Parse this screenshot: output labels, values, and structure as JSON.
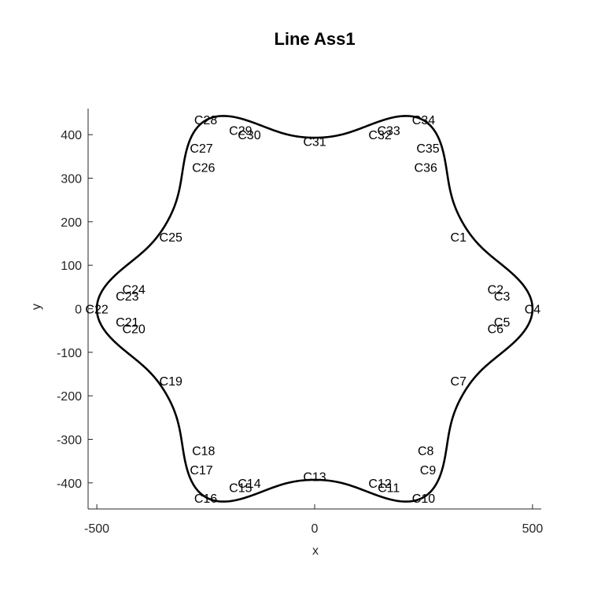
{
  "chart_data": {
    "type": "line",
    "title": "Line Ass1",
    "xlabel": "x",
    "ylabel": "y",
    "xlim": [
      -520,
      520
    ],
    "ylim": [
      -460,
      460
    ],
    "xticks": [
      -500,
      0,
      500
    ],
    "xtick_labels": [
      "-500",
      "0",
      "500"
    ],
    "yticks": [
      -400,
      -300,
      -200,
      -100,
      0,
      100,
      200,
      300,
      400
    ],
    "ytick_labels": [
      "-400",
      "-300",
      "-200",
      "-100",
      "0",
      "100",
      "200",
      "300",
      "400"
    ],
    "grid": false,
    "line_color": "#000000",
    "lobe_peaks_deg": [
      0,
      60,
      120,
      180,
      240,
      300
    ],
    "curve_samples": 720,
    "control_points": [
      {
        "label": "C1",
        "x": 330,
        "y": 165
      },
      {
        "label": "C2",
        "x": 415,
        "y": 45
      },
      {
        "label": "C3",
        "x": 430,
        "y": 30
      },
      {
        "label": "C4",
        "x": 500,
        "y": 0
      },
      {
        "label": "C5",
        "x": 430,
        "y": -30
      },
      {
        "label": "C6",
        "x": 415,
        "y": -45
      },
      {
        "label": "C7",
        "x": 330,
        "y": -165
      },
      {
        "label": "C8",
        "x": 255,
        "y": -325
      },
      {
        "label": "C9",
        "x": 260,
        "y": -370
      },
      {
        "label": "C10",
        "x": 250,
        "y": -435
      },
      {
        "label": "C11",
        "x": 170,
        "y": -410
      },
      {
        "label": "C12",
        "x": 150,
        "y": -400
      },
      {
        "label": "C13",
        "x": 0,
        "y": -385
      },
      {
        "label": "C14",
        "x": -150,
        "y": -400
      },
      {
        "label": "C15",
        "x": -170,
        "y": -410
      },
      {
        "label": "C16",
        "x": -250,
        "y": -435
      },
      {
        "label": "C17",
        "x": -260,
        "y": -370
      },
      {
        "label": "C18",
        "x": -255,
        "y": -325
      },
      {
        "label": "C19",
        "x": -330,
        "y": -165
      },
      {
        "label": "C20",
        "x": -415,
        "y": -45
      },
      {
        "label": "C21",
        "x": -430,
        "y": -30
      },
      {
        "label": "C22",
        "x": -500,
        "y": 0
      },
      {
        "label": "C23",
        "x": -430,
        "y": 30
      },
      {
        "label": "C24",
        "x": -415,
        "y": 45
      },
      {
        "label": "C25",
        "x": -330,
        "y": 165
      },
      {
        "label": "C26",
        "x": -255,
        "y": 325
      },
      {
        "label": "C27",
        "x": -260,
        "y": 370
      },
      {
        "label": "C28",
        "x": -250,
        "y": 435
      },
      {
        "label": "C29",
        "x": -170,
        "y": 410
      },
      {
        "label": "C30",
        "x": -150,
        "y": 400
      },
      {
        "label": "C31",
        "x": 0,
        "y": 385
      },
      {
        "label": "C32",
        "x": 150,
        "y": 400
      },
      {
        "label": "C33",
        "x": 170,
        "y": 410
      },
      {
        "label": "C34",
        "x": 250,
        "y": 435
      },
      {
        "label": "C35",
        "x": 260,
        "y": 370
      },
      {
        "label": "C36",
        "x": 255,
        "y": 325
      }
    ]
  }
}
